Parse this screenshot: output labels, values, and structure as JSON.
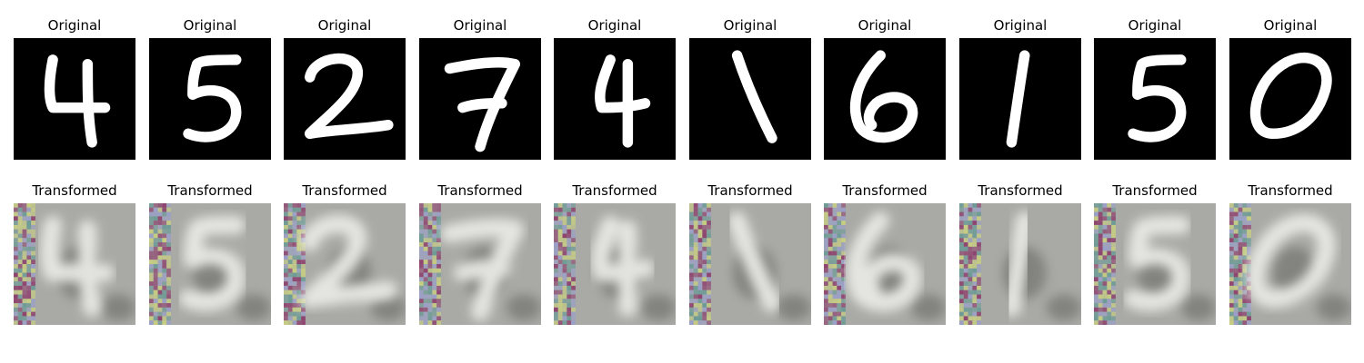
{
  "figure": {
    "row_titles": {
      "original": "Original",
      "transformed": "Transformed"
    },
    "samples": [
      {
        "digit": "4"
      },
      {
        "digit": "5"
      },
      {
        "digit": "2"
      },
      {
        "digit": "7"
      },
      {
        "digit": "4"
      },
      {
        "digit": "1"
      },
      {
        "digit": "6"
      },
      {
        "digit": "1"
      },
      {
        "digit": "5"
      },
      {
        "digit": "0"
      }
    ]
  },
  "colors": {
    "original_background": "#000000",
    "original_stroke": "#ffffff",
    "transformed_background": "#a9aaa6",
    "transformed_stroke": "#e8e8e4",
    "transformed_shadow": "#55554f",
    "noise_magenta": "#8c3e6c",
    "noise_yellow": "#c8cf80",
    "noise_teal": "#6a9a95",
    "noise_blue": "#9a9fc8"
  }
}
